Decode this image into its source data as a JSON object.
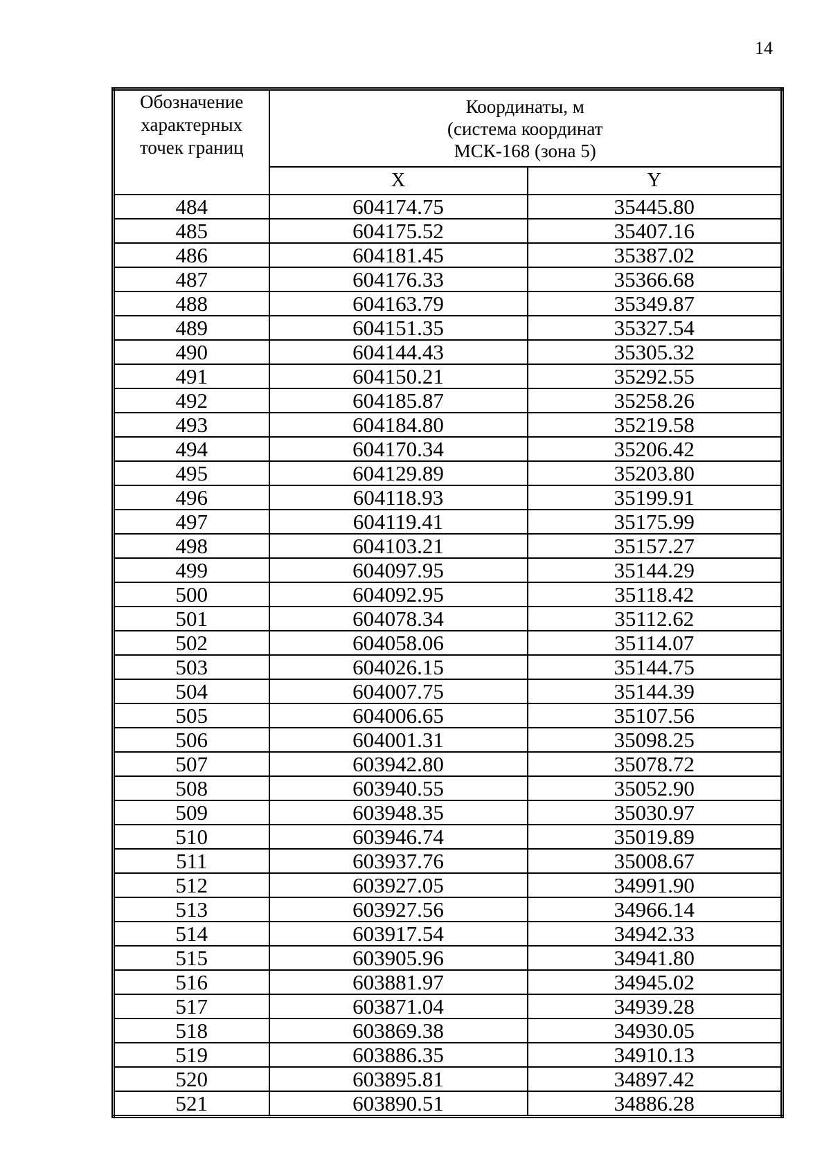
{
  "page": {
    "number": "14"
  },
  "table": {
    "header": {
      "point_label_lines": [
        "Обозначение",
        "характерных",
        "точек границ"
      ],
      "coords_title_lines": [
        "Координаты, м",
        "(система координат",
        "МСК-168 (зона 5)"
      ],
      "x_label": "X",
      "y_label": "Y"
    },
    "rows": [
      {
        "point": "484",
        "x": "604174.75",
        "y": "35445.80"
      },
      {
        "point": "485",
        "x": "604175.52",
        "y": "35407.16"
      },
      {
        "point": "486",
        "x": "604181.45",
        "y": "35387.02"
      },
      {
        "point": "487",
        "x": "604176.33",
        "y": "35366.68"
      },
      {
        "point": "488",
        "x": "604163.79",
        "y": "35349.87"
      },
      {
        "point": "489",
        "x": "604151.35",
        "y": "35327.54"
      },
      {
        "point": "490",
        "x": "604144.43",
        "y": "35305.32"
      },
      {
        "point": "491",
        "x": "604150.21",
        "y": "35292.55"
      },
      {
        "point": "492",
        "x": "604185.87",
        "y": "35258.26"
      },
      {
        "point": "493",
        "x": "604184.80",
        "y": "35219.58"
      },
      {
        "point": "494",
        "x": "604170.34",
        "y": "35206.42"
      },
      {
        "point": "495",
        "x": "604129.89",
        "y": "35203.80"
      },
      {
        "point": "496",
        "x": "604118.93",
        "y": "35199.91"
      },
      {
        "point": "497",
        "x": "604119.41",
        "y": "35175.99"
      },
      {
        "point": "498",
        "x": "604103.21",
        "y": "35157.27"
      },
      {
        "point": "499",
        "x": "604097.95",
        "y": "35144.29"
      },
      {
        "point": "500",
        "x": "604092.95",
        "y": "35118.42"
      },
      {
        "point": "501",
        "x": "604078.34",
        "y": "35112.62"
      },
      {
        "point": "502",
        "x": "604058.06",
        "y": "35114.07"
      },
      {
        "point": "503",
        "x": "604026.15",
        "y": "35144.75"
      },
      {
        "point": "504",
        "x": "604007.75",
        "y": "35144.39"
      },
      {
        "point": "505",
        "x": "604006.65",
        "y": "35107.56"
      },
      {
        "point": "506",
        "x": "604001.31",
        "y": "35098.25"
      },
      {
        "point": "507",
        "x": "603942.80",
        "y": "35078.72"
      },
      {
        "point": "508",
        "x": "603940.55",
        "y": "35052.90"
      },
      {
        "point": "509",
        "x": "603948.35",
        "y": "35030.97"
      },
      {
        "point": "510",
        "x": "603946.74",
        "y": "35019.89"
      },
      {
        "point": "511",
        "x": "603937.76",
        "y": "35008.67"
      },
      {
        "point": "512",
        "x": "603927.05",
        "y": "34991.90"
      },
      {
        "point": "513",
        "x": "603927.56",
        "y": "34966.14"
      },
      {
        "point": "514",
        "x": "603917.54",
        "y": "34942.33"
      },
      {
        "point": "515",
        "x": "603905.96",
        "y": "34941.80"
      },
      {
        "point": "516",
        "x": "603881.97",
        "y": "34945.02"
      },
      {
        "point": "517",
        "x": "603871.04",
        "y": "34939.28"
      },
      {
        "point": "518",
        "x": "603869.38",
        "y": "34930.05"
      },
      {
        "point": "519",
        "x": "603886.35",
        "y": "34910.13"
      },
      {
        "point": "520",
        "x": "603895.81",
        "y": "34897.42"
      },
      {
        "point": "521",
        "x": "603890.51",
        "y": "34886.28"
      }
    ]
  }
}
